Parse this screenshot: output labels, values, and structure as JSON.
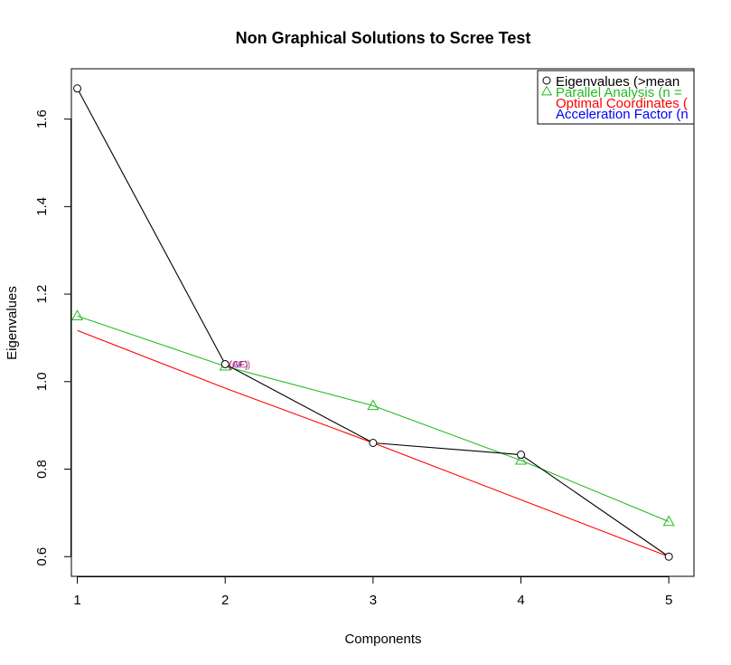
{
  "chart_data": {
    "type": "line",
    "title": "Non Graphical Solutions to Scree Test",
    "xlabel": "Components",
    "ylabel": "Eigenvalues",
    "xlim": [
      0.96,
      5.17
    ],
    "ylim": [
      0.555,
      1.715
    ],
    "x_ticks": [
      "1",
      "2",
      "3",
      "4",
      "5"
    ],
    "y_ticks": [
      "0.6",
      "0.8",
      "1.0",
      "1.2",
      "1.4",
      "1.6"
    ],
    "x": [
      1,
      2,
      3,
      4,
      5
    ],
    "series": [
      {
        "name": "Eigenvalues (>mean",
        "marker": "circle",
        "color": "#000000",
        "values": [
          1.67,
          1.04,
          0.86,
          0.833,
          0.6
        ]
      },
      {
        "name": "Parallel Analysis (n =",
        "marker": "triangle",
        "color": "#22bb22",
        "values": [
          1.15,
          1.035,
          0.945,
          0.82,
          0.68
        ]
      },
      {
        "name": "Optimal Coordinates (",
        "marker": "none",
        "color": "#ff0000",
        "segments": [
          [
            [
              1,
              1.117
            ],
            [
              2,
              0.985
            ],
            [
              3,
              0.86
            ]
          ],
          [
            [
              3,
              0.86
            ],
            [
              5,
              0.6
            ]
          ]
        ]
      },
      {
        "name": "Acceleration Factor (n",
        "marker": "none",
        "color": "#0000ff"
      }
    ],
    "point_labels": [
      {
        "x": 2,
        "y": 1.04,
        "text": "(AF)",
        "color": "#0000ff"
      },
      {
        "x": 2,
        "y": 1.04,
        "text": "(OC)",
        "color": "#ff0000"
      }
    ],
    "legend": {
      "position": "top-right",
      "entries": [
        {
          "text": "Eigenvalues (>mean",
          "color": "#000000",
          "symbol": "circle"
        },
        {
          "text": "Parallel Analysis (n =",
          "color": "#22bb22",
          "symbol": "triangle"
        },
        {
          "text": "Optimal Coordinates (",
          "color": "#ff0000",
          "symbol": "none"
        },
        {
          "text": "Acceleration Factor (n",
          "color": "#0000ff",
          "symbol": "none"
        }
      ]
    },
    "grid": false
  }
}
